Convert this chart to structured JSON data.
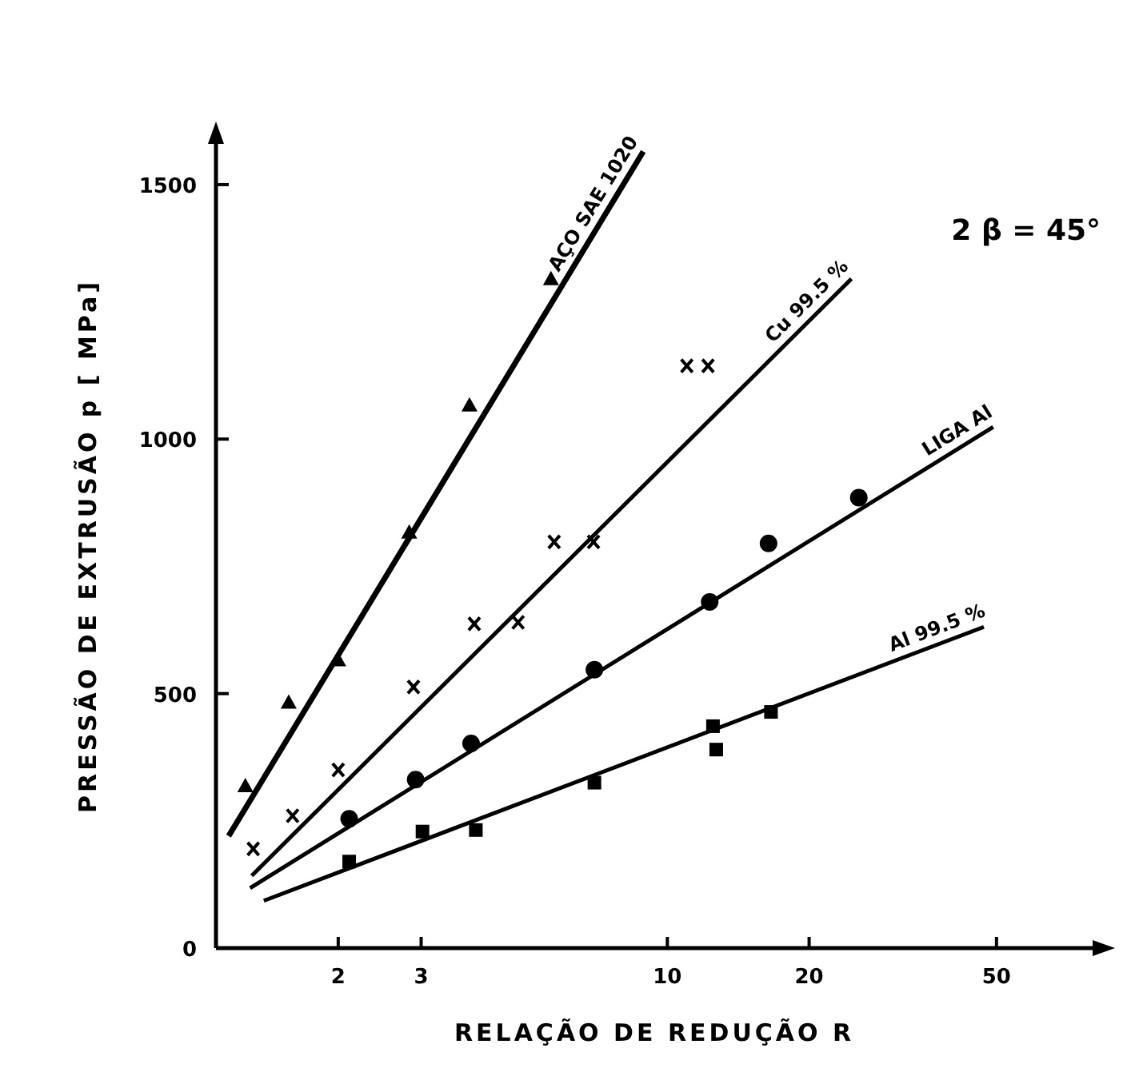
{
  "chart_data": {
    "type": "scatter",
    "xlabel": "RELAÇÃO DE REDUÇÃO R",
    "ylabel": "PRESSÃO DE EXTRUSÃO p [ MPa]",
    "log": "x",
    "xlim": [
      1.1,
      80
    ],
    "xticks": [
      2,
      3,
      10,
      20,
      50
    ],
    "ylim": [
      0,
      1580
    ],
    "yticks": [
      0,
      500,
      1000,
      1500
    ],
    "grid": false,
    "annotations": [
      "2 β = 45°"
    ],
    "series": [
      {
        "marker": "triangle",
        "color": "#000000",
        "x": [
          1.27,
          1.57,
          2,
          2.83,
          3.8,
          5.66
        ],
        "values": [
          319,
          483,
          566,
          817,
          1067,
          1315
        ]
      },
      {
        "type": "line",
        "name": "AÇO SAE 1020",
        "color": "#000000",
        "x": [
          1.17,
          8.89
        ],
        "values": [
          220,
          1565
        ]
      },
      {
        "marker": "cross",
        "color": "#000000",
        "x": [
          1.32,
          1.6,
          2,
          2.89,
          3.89,
          4.82,
          5.75,
          6.97,
          11,
          12.2
        ],
        "values": [
          195,
          260,
          350,
          513,
          637,
          640,
          798,
          798,
          1144,
          1144
        ]
      },
      {
        "type": "line",
        "name": "Cu 99.5 %",
        "color": "#000000",
        "x": [
          1.31,
          24.6
        ],
        "values": [
          142,
          1315
        ]
      },
      {
        "marker": "circle",
        "color": "#000000",
        "x": [
          2.11,
          2.92,
          3.83,
          7,
          12.3,
          16.4,
          25.5
        ],
        "values": [
          254,
          331,
          402,
          547,
          680,
          795,
          885
        ]
      },
      {
        "type": "line",
        "name": "LIGA Al",
        "color": "#000000",
        "x": [
          1.3,
          49.2
        ],
        "values": [
          118,
          1024
        ]
      },
      {
        "marker": "square",
        "color": "#000000",
        "x": [
          2.11,
          3.02,
          3.92,
          7,
          12.5,
          12.7,
          16.6
        ],
        "values": [
          170,
          229,
          232,
          325,
          436,
          390,
          464
        ]
      },
      {
        "type": "line",
        "name": "Al 99.5 %",
        "color": "#000000",
        "x": [
          1.39,
          47
        ],
        "values": [
          93,
          631
        ]
      }
    ]
  }
}
